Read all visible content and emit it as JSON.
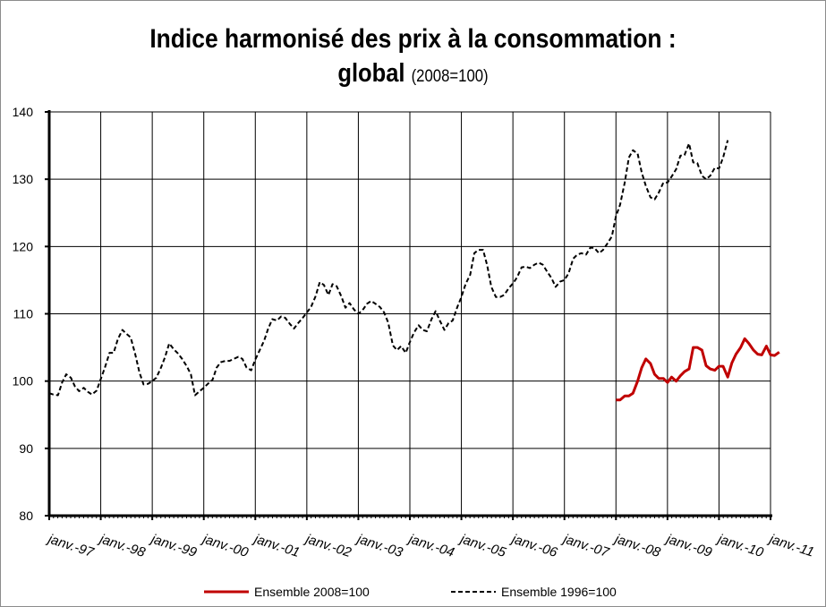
{
  "chart_data": {
    "type": "line",
    "title_line1": "Indice harmonisé des prix à la consommation :",
    "title_line2": "global",
    "title_note": "(2008=100)",
    "ylim": [
      80,
      140
    ],
    "yticks": [
      80,
      90,
      100,
      110,
      120,
      130,
      140
    ],
    "x_start_year": 1997,
    "x_end_year": 2011,
    "xtick_labels": [
      "janv.-97",
      "janv.-98",
      "janv.-99",
      "janv.-00",
      "janv.-01",
      "janv.-02",
      "janv.-03",
      "janv.-04",
      "janv.-05",
      "janv.-06",
      "janv.-07",
      "janv.-08",
      "janv.-09",
      "janv.-10",
      "janv.-11"
    ],
    "grid": true,
    "legend_position": "bottom",
    "series": [
      {
        "name": "Ensemble 2008=100",
        "color": "#c00000",
        "style": "solid",
        "points": [
          [
            2008.0,
            97.2
          ],
          [
            2008.08,
            97.2
          ],
          [
            2008.17,
            97.8
          ],
          [
            2008.25,
            97.8
          ],
          [
            2008.33,
            98.2
          ],
          [
            2008.42,
            100.0
          ],
          [
            2008.5,
            102.0
          ],
          [
            2008.58,
            103.3
          ],
          [
            2008.67,
            102.6
          ],
          [
            2008.75,
            101.0
          ],
          [
            2008.83,
            100.4
          ],
          [
            2008.92,
            100.4
          ],
          [
            2009.0,
            99.8
          ],
          [
            2009.08,
            100.6
          ],
          [
            2009.17,
            100.0
          ],
          [
            2009.25,
            100.8
          ],
          [
            2009.33,
            101.4
          ],
          [
            2009.42,
            101.8
          ],
          [
            2009.5,
            105.0
          ],
          [
            2009.58,
            105.0
          ],
          [
            2009.67,
            104.6
          ],
          [
            2009.75,
            102.3
          ],
          [
            2009.83,
            101.8
          ],
          [
            2009.92,
            101.6
          ],
          [
            2010.0,
            102.2
          ],
          [
            2010.08,
            102.2
          ],
          [
            2010.17,
            100.6
          ],
          [
            2010.25,
            102.7
          ],
          [
            2010.33,
            104.0
          ],
          [
            2010.42,
            105.0
          ],
          [
            2010.5,
            106.3
          ],
          [
            2010.58,
            105.6
          ],
          [
            2010.67,
            104.6
          ],
          [
            2010.75,
            104.0
          ],
          [
            2010.83,
            103.9
          ],
          [
            2010.92,
            105.2
          ],
          [
            2011.0,
            103.9
          ],
          [
            2011.08,
            103.8
          ],
          [
            2011.17,
            104.3
          ]
        ]
      },
      {
        "name": "Ensemble 1996=100",
        "color": "#000000",
        "style": "dashed",
        "points": [
          [
            1997.0,
            98.2
          ],
          [
            1997.08,
            98.0
          ],
          [
            1997.17,
            97.9
          ],
          [
            1997.25,
            99.8
          ],
          [
            1997.33,
            101.0
          ],
          [
            1997.42,
            100.5
          ],
          [
            1997.5,
            99.2
          ],
          [
            1997.58,
            98.5
          ],
          [
            1997.67,
            99.0
          ],
          [
            1997.75,
            98.4
          ],
          [
            1997.83,
            98.0
          ],
          [
            1997.92,
            98.6
          ],
          [
            1998.0,
            100.3
          ],
          [
            1998.08,
            102.0
          ],
          [
            1998.17,
            104.2
          ],
          [
            1998.25,
            104.2
          ],
          [
            1998.33,
            106.2
          ],
          [
            1998.42,
            107.6
          ],
          [
            1998.5,
            107.0
          ],
          [
            1998.58,
            106.5
          ],
          [
            1998.67,
            104.0
          ],
          [
            1998.75,
            101.3
          ],
          [
            1998.83,
            99.5
          ],
          [
            1998.92,
            99.6
          ],
          [
            1999.0,
            100.0
          ],
          [
            1999.08,
            100.5
          ],
          [
            1999.17,
            102.0
          ],
          [
            1999.25,
            103.6
          ],
          [
            1999.33,
            105.6
          ],
          [
            1999.42,
            104.7
          ],
          [
            1999.5,
            104.1
          ],
          [
            1999.58,
            103.3
          ],
          [
            1999.67,
            102.2
          ],
          [
            1999.75,
            101.0
          ],
          [
            1999.83,
            97.9
          ],
          [
            1999.92,
            98.5
          ],
          [
            2000.0,
            99.0
          ],
          [
            2000.08,
            99.6
          ],
          [
            2000.17,
            100.2
          ],
          [
            2000.25,
            102.0
          ],
          [
            2000.33,
            102.8
          ],
          [
            2000.42,
            103.0
          ],
          [
            2000.5,
            103.0
          ],
          [
            2000.58,
            103.3
          ],
          [
            2000.67,
            103.6
          ],
          [
            2000.75,
            103.3
          ],
          [
            2000.83,
            102.0
          ],
          [
            2000.92,
            101.6
          ],
          [
            2001.0,
            103.2
          ],
          [
            2001.08,
            104.5
          ],
          [
            2001.17,
            106.0
          ],
          [
            2001.25,
            107.8
          ],
          [
            2001.33,
            109.2
          ],
          [
            2001.42,
            109.0
          ],
          [
            2001.5,
            109.6
          ],
          [
            2001.58,
            109.4
          ],
          [
            2001.67,
            108.5
          ],
          [
            2001.75,
            107.8
          ],
          [
            2001.83,
            108.6
          ],
          [
            2001.92,
            109.4
          ],
          [
            2002.0,
            110.2
          ],
          [
            2002.08,
            111.0
          ],
          [
            2002.17,
            112.6
          ],
          [
            2002.25,
            114.7
          ],
          [
            2002.33,
            114.3
          ],
          [
            2002.42,
            112.8
          ],
          [
            2002.5,
            114.4
          ],
          [
            2002.58,
            114.1
          ],
          [
            2002.67,
            112.6
          ],
          [
            2002.75,
            110.9
          ],
          [
            2002.83,
            111.6
          ],
          [
            2002.92,
            110.6
          ],
          [
            2003.0,
            110.0
          ],
          [
            2003.08,
            110.5
          ],
          [
            2003.17,
            111.5
          ],
          [
            2003.25,
            111.9
          ],
          [
            2003.33,
            111.5
          ],
          [
            2003.42,
            111.0
          ],
          [
            2003.5,
            110.2
          ],
          [
            2003.58,
            108.7
          ],
          [
            2003.67,
            105.3
          ],
          [
            2003.75,
            104.6
          ],
          [
            2003.83,
            105.2
          ],
          [
            2003.92,
            104.2
          ],
          [
            2004.0,
            105.8
          ],
          [
            2004.08,
            107.2
          ],
          [
            2004.17,
            108.3
          ],
          [
            2004.25,
            107.6
          ],
          [
            2004.33,
            107.4
          ],
          [
            2004.42,
            109.2
          ],
          [
            2004.5,
            110.4
          ],
          [
            2004.58,
            109.0
          ],
          [
            2004.67,
            107.6
          ],
          [
            2004.75,
            108.6
          ],
          [
            2004.83,
            109.0
          ],
          [
            2004.92,
            111.0
          ],
          [
            2005.0,
            112.5
          ],
          [
            2005.08,
            114.4
          ],
          [
            2005.17,
            115.8
          ],
          [
            2005.25,
            119.0
          ],
          [
            2005.33,
            119.5
          ],
          [
            2005.42,
            119.5
          ],
          [
            2005.5,
            117.2
          ],
          [
            2005.58,
            114.0
          ],
          [
            2005.67,
            112.5
          ],
          [
            2005.75,
            112.5
          ],
          [
            2005.83,
            112.8
          ],
          [
            2005.92,
            113.8
          ],
          [
            2006.0,
            114.5
          ],
          [
            2006.08,
            115.4
          ],
          [
            2006.17,
            116.9
          ],
          [
            2006.25,
            117.0
          ],
          [
            2006.33,
            116.8
          ],
          [
            2006.42,
            117.3
          ],
          [
            2006.5,
            117.6
          ],
          [
            2006.58,
            117.3
          ],
          [
            2006.67,
            116.2
          ],
          [
            2006.75,
            115.3
          ],
          [
            2006.83,
            114.0
          ],
          [
            2006.92,
            114.8
          ],
          [
            2007.0,
            115.0
          ],
          [
            2007.08,
            116.0
          ],
          [
            2007.17,
            118.2
          ],
          [
            2007.25,
            118.8
          ],
          [
            2007.33,
            119.0
          ],
          [
            2007.42,
            118.8
          ],
          [
            2007.5,
            119.8
          ],
          [
            2007.58,
            119.8
          ],
          [
            2007.67,
            119.0
          ],
          [
            2007.75,
            119.5
          ],
          [
            2007.83,
            120.4
          ],
          [
            2007.92,
            121.5
          ],
          [
            2008.0,
            124.5
          ],
          [
            2008.08,
            126.2
          ],
          [
            2008.17,
            129.5
          ],
          [
            2008.25,
            133.2
          ],
          [
            2008.33,
            134.3
          ],
          [
            2008.42,
            133.8
          ],
          [
            2008.5,
            131.0
          ],
          [
            2008.58,
            129.0
          ],
          [
            2008.67,
            127.3
          ],
          [
            2008.75,
            127.0
          ],
          [
            2008.83,
            128.0
          ],
          [
            2008.92,
            129.5
          ],
          [
            2009.0,
            129.5
          ],
          [
            2009.08,
            130.4
          ],
          [
            2009.17,
            131.5
          ],
          [
            2009.25,
            133.5
          ],
          [
            2009.33,
            133.6
          ],
          [
            2009.42,
            135.3
          ],
          [
            2009.5,
            132.5
          ],
          [
            2009.58,
            132.4
          ],
          [
            2009.67,
            130.5
          ],
          [
            2009.75,
            130.0
          ],
          [
            2009.83,
            130.5
          ],
          [
            2009.92,
            131.7
          ],
          [
            2010.0,
            131.6
          ],
          [
            2010.08,
            133.2
          ],
          [
            2010.17,
            135.8
          ]
        ]
      }
    ]
  }
}
